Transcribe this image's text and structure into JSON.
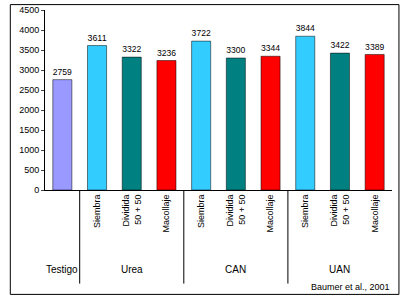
{
  "chart_data": {
    "type": "bar",
    "categories": [
      null,
      "Siembra",
      "Dividida\n50 + 50",
      "Macollaje",
      "Siembra",
      "Dividida\n50 + 50",
      "Macollaje",
      "Siembra",
      "Dividida\n50 + 50",
      "Macollaje"
    ],
    "groups": [
      "Testigo",
      "Urea",
      "Urea",
      "Urea",
      "CAN",
      "CAN",
      "CAN",
      "UAN",
      "UAN",
      "UAN"
    ],
    "values": [
      2759,
      3611,
      3322,
      3236,
      3722,
      3300,
      3344,
      3844,
      3422,
      3389
    ],
    "colors": [
      "#9999ff",
      "#33ccff",
      "#008080",
      "#ff0000",
      "#33ccff",
      "#008080",
      "#ff0000",
      "#33ccff",
      "#008080",
      "#ff0000"
    ],
    "ylim": [
      0,
      4500
    ],
    "yticks": [
      0,
      500,
      1000,
      1500,
      2000,
      2500,
      3000,
      3500,
      4000,
      4500
    ],
    "grid": false,
    "data_labels": true,
    "annotations": [
      "Baumer et al., 2001"
    ]
  }
}
